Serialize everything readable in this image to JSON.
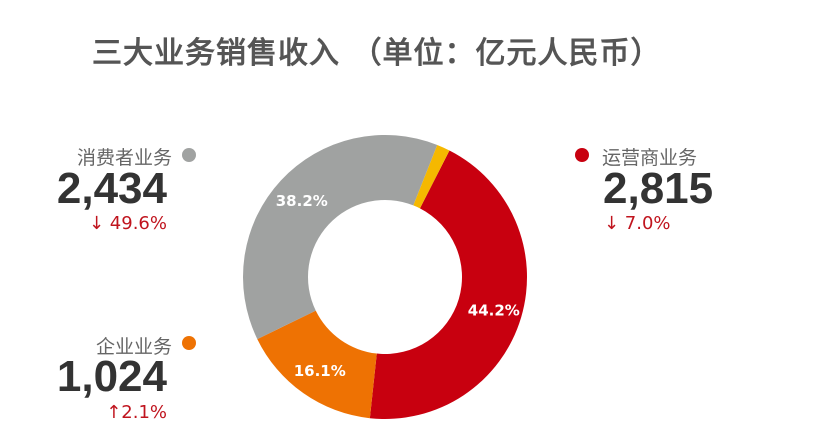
{
  "chart_data": {
    "type": "pie",
    "variant": "donut",
    "title": "三大业务销售收入 （单位：亿元人民币）",
    "slices": [
      {
        "name": "运营商业务",
        "percent": 44.2,
        "label": "44.2%",
        "amount": "2,815",
        "change": "↓ 7.0%",
        "color": "#c8000f"
      },
      {
        "name": "企业业务",
        "percent": 16.1,
        "label": "16.1%",
        "amount": "1,024",
        "change": "↑2.1%",
        "color": "#ee7203"
      },
      {
        "name": "消费者业务",
        "percent": 38.2,
        "label": "38.2%",
        "amount": "2,434",
        "change": "↓ 49.6%",
        "color": "#a0a2a1"
      },
      {
        "percent": 1.5,
        "color": "#f5b800"
      }
    ],
    "legend": "beside"
  }
}
